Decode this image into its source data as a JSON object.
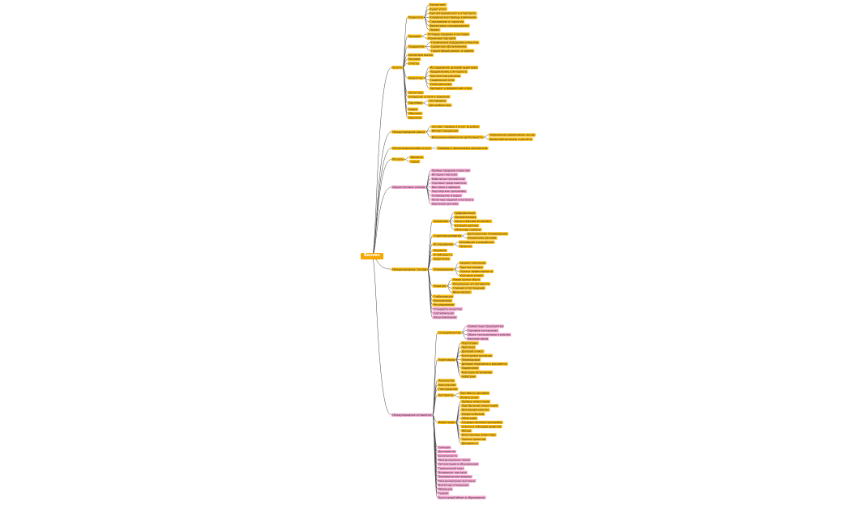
{
  "tree": {
    "label": "Бизнес",
    "color": "#f5a800",
    "children": [
      {
        "label": "Услуги",
        "color": "#fbbd0f",
        "children": [
          {
            "label": "Подуслуги",
            "children": [
              {
                "label": "Консалтинг"
              },
              {
                "label": "Аудит услуг"
              },
              {
                "label": "Бухгалтерский учёт и отчётность"
              },
              {
                "label": "Юридическая помощь компаниям"
              },
              {
                "label": "Страхование и гарантии"
              },
              {
                "label": "Финансовое сопровождение"
              },
              {
                "label": "Лизинг"
              }
            ]
          },
          {
            "label": "Продажи",
            "children": [
              {
                "label": "Оптовые продажи и поставки"
              },
              {
                "label": "Розничная торговля"
              }
            ]
          },
          {
            "label": "Поддержка",
            "children": [
              {
                "label": "Техническая поддержка клиентов"
              },
              {
                "label": "Сервисное обслуживание"
              },
              {
                "label": "Гарантийный ремонт и замена"
              }
            ]
          },
          {
            "label": "Аналитика рынка"
          },
          {
            "label": "Реклама"
          },
          {
            "label": "Отчёты"
          },
          {
            "label": "Маркетинг",
            "children": [
              {
                "label": "Исследование целевой аудитории"
              },
              {
                "label": "Продвижение в интернете"
              },
              {
                "label": "Контекстная реклама"
              },
              {
                "label": "Социальные сети"
              },
              {
                "label": "Email-рассылки"
              },
              {
                "label": "Брендинг и фирменный стиль"
              }
            ]
          },
          {
            "label": "Логистика"
          },
          {
            "label": "Складские услуги и хранение"
          },
          {
            "label": "Партнёры",
            "children": [
              {
                "label": "Поставщики"
              },
              {
                "label": "Дистрибьюторы"
              }
            ]
          },
          {
            "label": "Кадры"
          },
          {
            "label": "Обучение"
          },
          {
            "label": "Персонал"
          }
        ]
      },
      {
        "label": "Международные рынки",
        "color": "#fbbd0f",
        "children": [
          {
            "label": "Экспорт товаров и услуг за рубеж"
          },
          {
            "label": "Импорт продукции"
          },
          {
            "label": "Внешнеэкономическая деятельность",
            "children": [
              {
                "label": "Таможенное оформление грузов"
              },
              {
                "label": "Валютный контроль и расчёты"
              }
            ]
          }
        ]
      },
      {
        "label": "Интернациональные услуги",
        "color": "#fbbd0f",
        "children": [
          {
            "label": "Перевод и локализация документов"
          }
        ]
      },
      {
        "label": "Ресурсы",
        "color": "#fbbd0f",
        "children": [
          {
            "label": "Финансы"
          },
          {
            "label": "Сырьё"
          }
        ]
      },
      {
        "label": "Маркетинговые каналы",
        "color": "#f7a8d3",
        "children": [
          {
            "label": "Прямые продажи клиентам"
          },
          {
            "label": "Интернет-магазин"
          },
          {
            "label": "Мобильное приложение"
          },
          {
            "label": "Торговые представители"
          },
          {
            "label": "Выставки и ярмарки"
          },
          {
            "label": "Партнёрские программы"
          },
          {
            "label": "Телевидение и радио"
          },
          {
            "label": "Печатные издания и каталоги"
          },
          {
            "label": "Наружная реклама"
          }
        ]
      },
      {
        "label": "Международные тренды",
        "color": "#fbbd0f",
        "children": [
          {
            "label": "Аналитика",
            "children": [
              {
                "label": "Цифровизация"
              },
              {
                "label": "Автоматизация"
              },
              {
                "label": "Искусственный интеллект"
              },
              {
                "label": "Большие данные"
              },
              {
                "label": "Облачные сервисы"
              }
            ]
          },
          {
            "label": "Стратегия развития",
            "children": [
              {
                "label": "Долгосрочное планирование"
              },
              {
                "label": "Управление рисками"
              }
            ]
          },
          {
            "label": "Исследования",
            "children": [
              {
                "label": "Инновации и разработки"
              },
              {
                "label": "Патенты"
              }
            ]
          },
          {
            "label": "Экология"
          },
          {
            "label": "Устойчивость"
          },
          {
            "label": "Энергетика"
          },
          {
            "label": "Планирование",
            "children": [
              {
                "label": "Бюджет компании"
              },
              {
                "label": "Прогноз продаж"
              },
              {
                "label": "Оценка эффективности"
              },
              {
                "label": "Контроль затрат"
              }
            ]
          },
          {
            "label": "Развитие",
            "children": [
              {
                "label": "Новые рынки сбыта"
              },
              {
                "label": "Расширение ассортимента"
              },
              {
                "label": "Слияния и поглощения"
              },
              {
                "label": "Франчайзинг"
              }
            ]
          },
          {
            "label": "Глобализация"
          },
          {
            "label": "Конкуренция"
          },
          {
            "label": "Регулирование"
          },
          {
            "label": "Стандарты качества",
            "color": "#f7a8d3"
          },
          {
            "label": "Сертификация",
            "color": "#f7a8d3"
          },
          {
            "label": "Лицензирование",
            "color": "#f7a8d3"
          }
        ]
      },
      {
        "label": "Международные отношения",
        "color": "#f7a8d3",
        "children": [
          {
            "label": "Сотрудничество",
            "color": "#fbbd0f",
            "children": [
              {
                "label": "Совместные предприятия",
                "color": "#f7a8d3"
              },
              {
                "label": "Торговые соглашения",
                "color": "#f7a8d3"
              },
              {
                "label": "Обмен технологиями и опытом",
                "color": "#f7a8d3"
              },
              {
                "label": "Научные связи",
                "color": "#f7a8d3"
              }
            ]
          },
          {
            "label": "Переговоры",
            "color": "#fbbd0f",
            "children": [
              {
                "label": "Подготовка"
              },
              {
                "label": "Протокол"
              },
              {
                "label": "Деловой этикет"
              },
              {
                "label": "Культурные различия"
              },
              {
                "label": "Переводчики"
              },
              {
                "label": "Деловая переписка и документы"
              },
              {
                "label": "Подписание"
              },
              {
                "label": "Контроль исполнения"
              },
              {
                "label": "Арбитраж"
              }
            ]
          },
          {
            "label": "Посольства",
            "color": "#fbbd0f"
          },
          {
            "label": "Консульства",
            "color": "#fbbd0f"
          },
          {
            "label": "Торгпредства",
            "color": "#fbbd0f"
          },
          {
            "label": "Контракты",
            "color": "#fbbd0f",
            "children": [
              {
                "label": "Поставка и доставка"
              },
              {
                "label": "Оплата услуг"
              }
            ]
          },
          {
            "label": "Инвестиции",
            "color": "#fbbd0f",
            "children": [
              {
                "label": "Прямые инвестиции"
              },
              {
                "label": "Портфельные инвестиции"
              },
              {
                "label": "Венчурный капитал"
              },
              {
                "label": "Кредиты банков"
              },
              {
                "label": "Облигации"
              },
              {
                "label": "Государственные программы"
              },
              {
                "label": "Гранты и субсидии развития"
              },
              {
                "label": "Фонды"
              },
              {
                "label": "Иностранные инвесторы"
              },
              {
                "label": "Оценка проектов"
              },
              {
                "label": "Доходность"
              }
            ]
          },
          {
            "label": "Санкции"
          },
          {
            "label": "Дипломатия"
          },
          {
            "label": "Безопасность"
          },
          {
            "label": "Международное право"
          },
          {
            "label": "Организации и объединения"
          },
          {
            "label": "Таможенный союз"
          },
          {
            "label": "Всемирная торговля"
          },
          {
            "label": "Экономические форумы"
          },
          {
            "label": "Международные выставки"
          },
          {
            "label": "Валютные отношения"
          },
          {
            "label": "Миграция"
          },
          {
            "label": "Туризм"
          },
          {
            "label": "Культурный обмен и образование"
          }
        ]
      }
    ]
  }
}
